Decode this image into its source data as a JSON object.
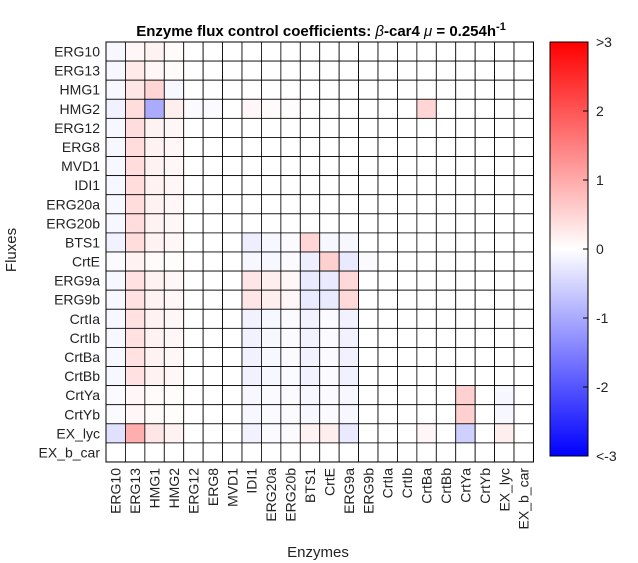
{
  "chart_data": {
    "type": "heatmap",
    "title_prefix": "Enzyme flux control coefficients: ",
    "title_beta": "β",
    "title_mid": "-car4 ",
    "title_mu": "μ",
    "title_value": " = 0.254h",
    "title_exp": "-1",
    "xlabel": "Enzymes",
    "ylabel": "Fluxes",
    "columns": [
      "ERG10",
      "ERG13",
      "HMG1",
      "HMG2",
      "ERG12",
      "ERG8",
      "MVD1",
      "IDI1",
      "ERG20a",
      "ERG20b",
      "BTS1",
      "CrtE",
      "ERG9a",
      "ERG9b",
      "CrtIa",
      "CrtIb",
      "CrtBa",
      "CrtBb",
      "CrtYa",
      "CrtYb",
      "EX_lyc",
      "EX_b_car"
    ],
    "rows": [
      "ERG10",
      "ERG13",
      "HMG1",
      "HMG2",
      "ERG12",
      "ERG8",
      "MVD1",
      "IDI1",
      "ERG20a",
      "ERG20b",
      "BTS1",
      "CrtE",
      "ERG9a",
      "ERG9b",
      "CrtIa",
      "CrtIb",
      "CrtBa",
      "CrtBb",
      "CrtYa",
      "CrtYb",
      "EX_lyc",
      "EX_b_car"
    ],
    "values": [
      [
        -0.1,
        0.1,
        0.15,
        0.05,
        0,
        0,
        0,
        0,
        0,
        0,
        0,
        0,
        0,
        0,
        0,
        0,
        0,
        0,
        0,
        0,
        0,
        0
      ],
      [
        -0.1,
        0.25,
        0.1,
        0.05,
        0,
        0,
        0,
        0,
        0,
        0,
        0,
        0,
        0,
        0,
        0,
        0,
        0,
        0,
        0,
        0,
        0,
        0
      ],
      [
        -0.1,
        0.3,
        0.5,
        -0.1,
        0,
        0,
        0,
        0,
        0,
        0,
        0,
        0,
        0,
        0,
        0,
        0,
        0,
        0,
        0,
        0,
        0,
        0
      ],
      [
        -0.15,
        0.4,
        -1.0,
        0.2,
        -0.05,
        -0.05,
        0,
        0.1,
        0.05,
        0.03,
        0,
        0,
        0,
        0,
        0,
        0,
        0.5,
        0,
        0,
        0,
        0,
        0
      ],
      [
        -0.1,
        0.4,
        0.15,
        0.1,
        0,
        0,
        0,
        0,
        0,
        0,
        0,
        0,
        0,
        0,
        0,
        0,
        0,
        0,
        0,
        0,
        0,
        0
      ],
      [
        -0.1,
        0.4,
        0.15,
        0.1,
        0,
        0,
        0,
        0,
        0,
        0,
        0,
        0,
        0,
        0,
        0,
        0,
        0,
        0,
        0,
        0,
        0,
        0
      ],
      [
        -0.1,
        0.4,
        0.15,
        0.1,
        0,
        0,
        0,
        0,
        0,
        0,
        0,
        0,
        0,
        0,
        0,
        0,
        0,
        0,
        0,
        0,
        0,
        0
      ],
      [
        -0.1,
        0.4,
        0.15,
        0.1,
        0,
        0,
        0,
        0,
        0,
        0,
        0,
        0,
        0,
        0,
        0,
        0,
        0,
        0,
        0,
        0,
        0,
        0
      ],
      [
        -0.1,
        0.4,
        0.15,
        0.1,
        0,
        0,
        0,
        0,
        0,
        0,
        0,
        0,
        0,
        0,
        0,
        0,
        0,
        0,
        0,
        0,
        0,
        0
      ],
      [
        -0.1,
        0.4,
        0.15,
        0.1,
        0,
        0,
        0,
        0,
        0,
        0,
        0,
        0,
        0,
        0,
        0,
        0,
        0,
        0,
        0,
        0,
        0,
        0
      ],
      [
        -0.15,
        0.4,
        0.15,
        0.1,
        0,
        0,
        0,
        -0.2,
        -0.1,
        -0.05,
        0.5,
        -0.1,
        -0.1,
        0,
        0,
        0,
        0,
        0,
        0,
        0,
        0,
        0
      ],
      [
        -0.05,
        0.15,
        0.05,
        0.03,
        0,
        0,
        0,
        -0.1,
        -0.1,
        -0.05,
        -0.2,
        0.55,
        -0.25,
        -0.05,
        0,
        0,
        0,
        0,
        0,
        0,
        0,
        0
      ],
      [
        -0.1,
        0.35,
        0.15,
        0.1,
        0,
        0,
        0,
        0.3,
        0.2,
        0.1,
        -0.25,
        -0.25,
        0.45,
        0,
        0,
        0,
        0,
        0,
        0,
        0,
        0,
        0
      ],
      [
        -0.1,
        0.35,
        0.15,
        0.1,
        0,
        0,
        0,
        0.3,
        0.2,
        0.1,
        -0.25,
        -0.25,
        0.45,
        0,
        0,
        0,
        0,
        0,
        0,
        0,
        0,
        0
      ],
      [
        -0.1,
        0.35,
        0.15,
        0.1,
        0,
        0,
        0,
        -0.15,
        -0.1,
        -0.05,
        -0.15,
        -0.05,
        -0.15,
        0,
        0,
        0,
        0,
        0,
        0,
        0,
        0,
        0
      ],
      [
        -0.1,
        0.35,
        0.15,
        0.1,
        0,
        0,
        0,
        -0.15,
        -0.1,
        -0.05,
        -0.15,
        -0.05,
        -0.15,
        0,
        0,
        0,
        0,
        0,
        0,
        0,
        0,
        0
      ],
      [
        -0.1,
        0.35,
        0.15,
        0.1,
        0,
        0,
        0,
        -0.15,
        -0.1,
        -0.05,
        -0.15,
        -0.05,
        -0.15,
        0,
        0,
        0,
        0,
        0,
        0,
        0,
        0,
        0
      ],
      [
        -0.1,
        0.35,
        0.15,
        0.1,
        0,
        0,
        0,
        -0.15,
        -0.1,
        -0.05,
        -0.15,
        -0.05,
        -0.15,
        0,
        0,
        0,
        0,
        0,
        0,
        0,
        0,
        0
      ],
      [
        -0.05,
        0.1,
        0.05,
        0.03,
        0,
        0,
        0,
        -0.1,
        -0.05,
        -0.05,
        -0.1,
        -0.05,
        -0.1,
        0,
        0,
        0,
        0,
        0,
        0.55,
        0,
        -0.1,
        0
      ],
      [
        -0.05,
        0.1,
        0.05,
        0.03,
        0,
        0,
        0,
        -0.1,
        -0.05,
        -0.05,
        -0.1,
        -0.05,
        -0.1,
        0,
        0,
        0,
        0,
        0,
        0.55,
        0,
        -0.1,
        0
      ],
      [
        -0.35,
        0.95,
        0.3,
        0.15,
        0,
        0,
        0,
        -0.15,
        -0.05,
        -0.05,
        0.15,
        0.2,
        -0.25,
        0,
        0,
        0,
        0.1,
        0,
        -0.55,
        0,
        0.2,
        0
      ],
      [
        0,
        0,
        0,
        0,
        0,
        0,
        0,
        0,
        0,
        0,
        0,
        0,
        0,
        0,
        0,
        0,
        0,
        0,
        0,
        0,
        0,
        0
      ]
    ],
    "color_range": [
      -3,
      3
    ],
    "colorbar_ticks": [
      ">3",
      "2",
      "1",
      "0",
      "-1",
      "-2",
      "<-3"
    ],
    "colors": {
      "positive": "#ff0000",
      "negative": "#0000ff",
      "zero": "#ffffff",
      "grid": "#000000"
    }
  }
}
